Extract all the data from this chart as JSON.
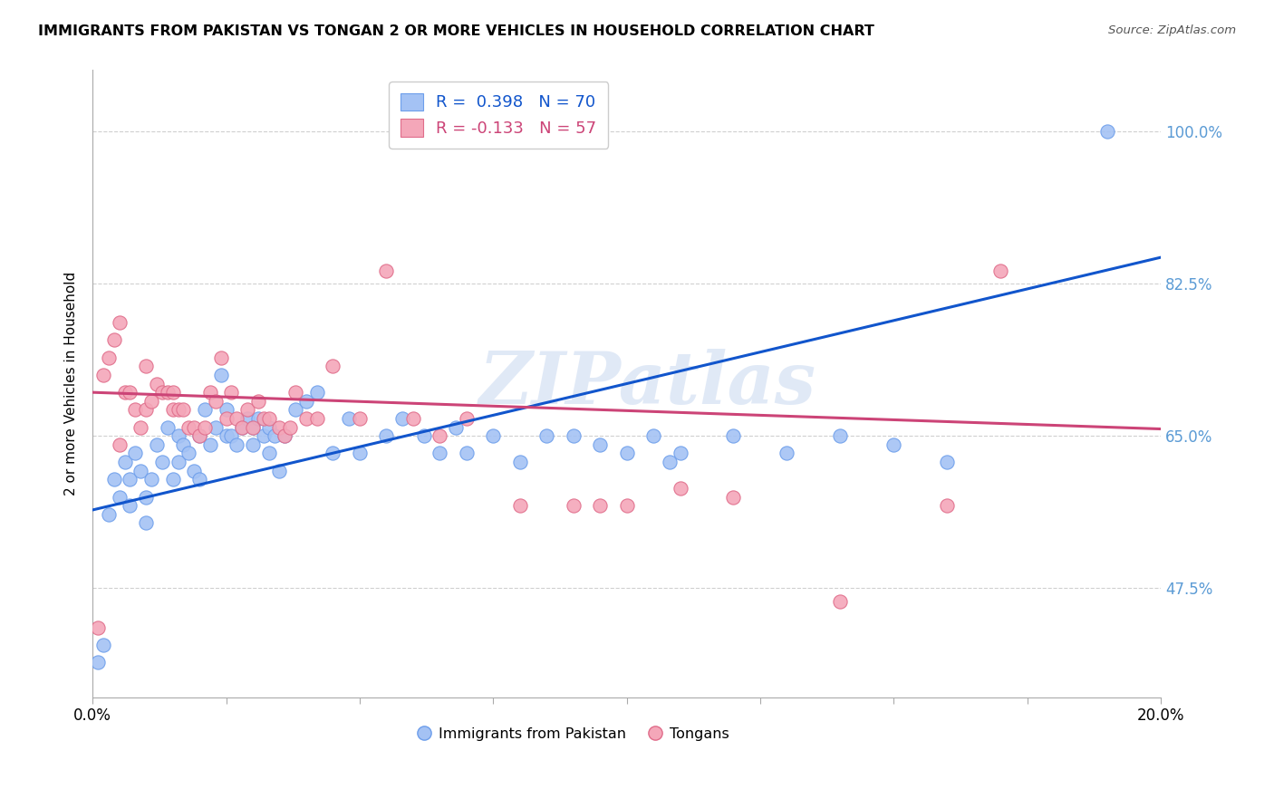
{
  "title": "IMMIGRANTS FROM PAKISTAN VS TONGAN 2 OR MORE VEHICLES IN HOUSEHOLD CORRELATION CHART",
  "source": "Source: ZipAtlas.com",
  "xlabel_ticks_left": "0.0%",
  "xlabel_ticks_right": "20.0%",
  "xlabel_tick_vals": [
    0.0,
    0.025,
    0.05,
    0.075,
    0.1,
    0.125,
    0.15,
    0.175,
    0.2
  ],
  "ylabel_ticks": [
    "47.5%",
    "65.0%",
    "82.5%",
    "100.0%"
  ],
  "ylabel_tick_vals": [
    0.475,
    0.65,
    0.825,
    1.0
  ],
  "xmin": 0.0,
  "xmax": 0.2,
  "ymin": 0.35,
  "ymax": 1.07,
  "blue_R": 0.398,
  "blue_N": 70,
  "pink_R": -0.133,
  "pink_N": 57,
  "blue_color": "#a4c2f4",
  "pink_color": "#f4a7b9",
  "blue_edge_color": "#6d9eeb",
  "pink_edge_color": "#e06c8a",
  "blue_line_color": "#1155cc",
  "pink_line_color": "#cc4477",
  "legend_label_blue": "Immigrants from Pakistan",
  "legend_label_pink": "Tongans",
  "ylabel": "2 or more Vehicles in Household",
  "blue_scatter_x": [
    0.001,
    0.002,
    0.003,
    0.004,
    0.005,
    0.006,
    0.007,
    0.007,
    0.008,
    0.009,
    0.01,
    0.01,
    0.011,
    0.012,
    0.013,
    0.014,
    0.015,
    0.016,
    0.016,
    0.017,
    0.018,
    0.019,
    0.02,
    0.02,
    0.021,
    0.022,
    0.023,
    0.024,
    0.025,
    0.025,
    0.026,
    0.027,
    0.028,
    0.029,
    0.03,
    0.03,
    0.031,
    0.032,
    0.033,
    0.033,
    0.034,
    0.035,
    0.036,
    0.038,
    0.04,
    0.042,
    0.045,
    0.048,
    0.05,
    0.055,
    0.058,
    0.062,
    0.065,
    0.068,
    0.07,
    0.075,
    0.08,
    0.085,
    0.09,
    0.095,
    0.1,
    0.105,
    0.108,
    0.11,
    0.12,
    0.13,
    0.14,
    0.15,
    0.16,
    0.19
  ],
  "blue_scatter_y": [
    0.39,
    0.41,
    0.56,
    0.6,
    0.58,
    0.62,
    0.6,
    0.57,
    0.63,
    0.61,
    0.58,
    0.55,
    0.6,
    0.64,
    0.62,
    0.66,
    0.6,
    0.65,
    0.62,
    0.64,
    0.63,
    0.61,
    0.6,
    0.65,
    0.68,
    0.64,
    0.66,
    0.72,
    0.68,
    0.65,
    0.65,
    0.64,
    0.66,
    0.67,
    0.64,
    0.66,
    0.67,
    0.65,
    0.66,
    0.63,
    0.65,
    0.61,
    0.65,
    0.68,
    0.69,
    0.7,
    0.63,
    0.67,
    0.63,
    0.65,
    0.67,
    0.65,
    0.63,
    0.66,
    0.63,
    0.65,
    0.62,
    0.65,
    0.65,
    0.64,
    0.63,
    0.65,
    0.62,
    0.63,
    0.65,
    0.63,
    0.65,
    0.64,
    0.62,
    1.0
  ],
  "pink_scatter_x": [
    0.001,
    0.002,
    0.003,
    0.004,
    0.005,
    0.005,
    0.006,
    0.007,
    0.008,
    0.009,
    0.01,
    0.01,
    0.011,
    0.012,
    0.013,
    0.014,
    0.015,
    0.015,
    0.016,
    0.017,
    0.018,
    0.019,
    0.02,
    0.021,
    0.022,
    0.023,
    0.024,
    0.025,
    0.026,
    0.027,
    0.028,
    0.029,
    0.03,
    0.031,
    0.032,
    0.033,
    0.035,
    0.036,
    0.037,
    0.038,
    0.04,
    0.042,
    0.045,
    0.05,
    0.055,
    0.06,
    0.065,
    0.07,
    0.08,
    0.09,
    0.095,
    0.1,
    0.11,
    0.12,
    0.14,
    0.16,
    0.17
  ],
  "pink_scatter_y": [
    0.43,
    0.72,
    0.74,
    0.76,
    0.64,
    0.78,
    0.7,
    0.7,
    0.68,
    0.66,
    0.68,
    0.73,
    0.69,
    0.71,
    0.7,
    0.7,
    0.7,
    0.68,
    0.68,
    0.68,
    0.66,
    0.66,
    0.65,
    0.66,
    0.7,
    0.69,
    0.74,
    0.67,
    0.7,
    0.67,
    0.66,
    0.68,
    0.66,
    0.69,
    0.67,
    0.67,
    0.66,
    0.65,
    0.66,
    0.7,
    0.67,
    0.67,
    0.73,
    0.67,
    0.84,
    0.67,
    0.65,
    0.67,
    0.57,
    0.57,
    0.57,
    0.57,
    0.59,
    0.58,
    0.46,
    0.57,
    0.84
  ],
  "blue_line_x": [
    0.0,
    0.2
  ],
  "blue_line_y": [
    0.565,
    0.855
  ],
  "pink_line_x": [
    0.0,
    0.2
  ],
  "pink_line_y": [
    0.7,
    0.658
  ],
  "watermark": "ZIPatlas",
  "grid_color": "#d0d0d0",
  "right_tick_color": "#5b9bd5"
}
